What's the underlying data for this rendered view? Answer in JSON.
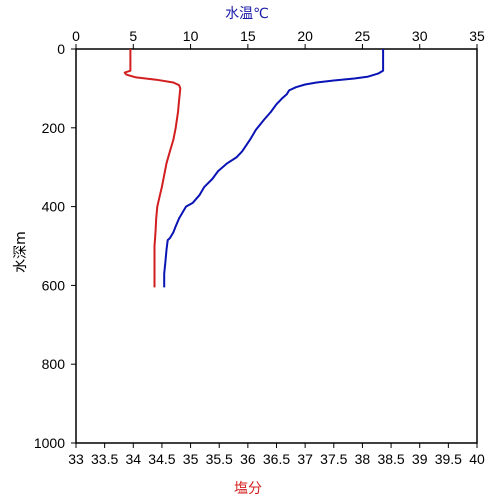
{
  "chart_data": {
    "type": "line",
    "top_axis": {
      "label": "水温℃",
      "color": "#1a1aa8",
      "range": [
        0,
        35
      ],
      "ticks": [
        "0",
        "5",
        "10",
        "15",
        "20",
        "25",
        "30",
        "35"
      ]
    },
    "bottom_axis": {
      "label": "塩分",
      "color": "#d42020",
      "range": [
        33,
        40
      ],
      "ticks": [
        "33",
        "33.5",
        "34",
        "34.5",
        "35",
        "35.5",
        "36",
        "36.5",
        "37",
        "37.5",
        "38",
        "38.5",
        "39",
        "39.5",
        "40"
      ]
    },
    "left_axis": {
      "label": "水深m",
      "range": [
        0,
        1000
      ],
      "inverted": true,
      "ticks": [
        "0",
        "200",
        "400",
        "600",
        "800",
        "1000"
      ]
    },
    "grid": false,
    "series": [
      {
        "quantity": "temperature",
        "axis": "top",
        "color": "#0a14b4",
        "points": [
          [
            26.8,
            0
          ],
          [
            26.8,
            55
          ],
          [
            26.4,
            62
          ],
          [
            25.5,
            70
          ],
          [
            24.3,
            75
          ],
          [
            22.5,
            80
          ],
          [
            21.0,
            85
          ],
          [
            20.0,
            90
          ],
          [
            19.2,
            97
          ],
          [
            18.6,
            105
          ],
          [
            18.4,
            115
          ],
          [
            18.0,
            125
          ],
          [
            17.5,
            140
          ],
          [
            17.0,
            160
          ],
          [
            16.4,
            180
          ],
          [
            15.7,
            205
          ],
          [
            15.2,
            230
          ],
          [
            14.5,
            260
          ],
          [
            14.0,
            275
          ],
          [
            13.2,
            290
          ],
          [
            12.4,
            310
          ],
          [
            11.9,
            330
          ],
          [
            11.2,
            350
          ],
          [
            10.8,
            370
          ],
          [
            10.2,
            390
          ],
          [
            9.6,
            400
          ],
          [
            9.4,
            410
          ],
          [
            9.0,
            430
          ],
          [
            8.7,
            450
          ],
          [
            8.5,
            465
          ],
          [
            8.2,
            480
          ],
          [
            8.0,
            485
          ],
          [
            7.9,
            510
          ],
          [
            7.8,
            540
          ],
          [
            7.7,
            570
          ],
          [
            7.7,
            605
          ]
        ]
      },
      {
        "quantity": "salinity",
        "axis": "bottom",
        "color": "#d21e1e",
        "points": [
          [
            33.95,
            0
          ],
          [
            33.95,
            55
          ],
          [
            33.85,
            60
          ],
          [
            33.88,
            65
          ],
          [
            34.05,
            72
          ],
          [
            34.4,
            78
          ],
          [
            34.7,
            85
          ],
          [
            34.8,
            92
          ],
          [
            34.82,
            100
          ],
          [
            34.8,
            130
          ],
          [
            34.78,
            160
          ],
          [
            34.74,
            200
          ],
          [
            34.7,
            230
          ],
          [
            34.64,
            260
          ],
          [
            34.58,
            290
          ],
          [
            34.54,
            320
          ],
          [
            34.5,
            350
          ],
          [
            34.45,
            380
          ],
          [
            34.42,
            400
          ],
          [
            34.4,
            430
          ],
          [
            34.39,
            460
          ],
          [
            34.38,
            480
          ],
          [
            34.37,
            500
          ],
          [
            34.37,
            540
          ],
          [
            34.37,
            605
          ]
        ]
      }
    ]
  }
}
